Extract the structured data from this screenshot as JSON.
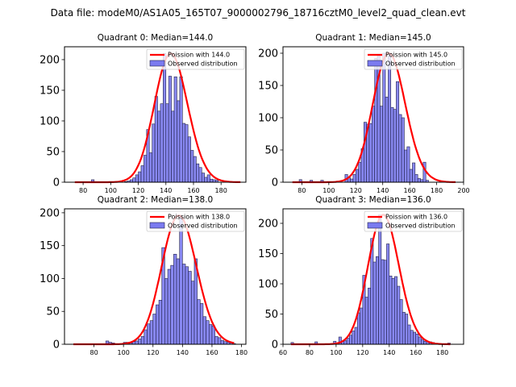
{
  "suptitle": "Data file: modeM0/AS1A05_165T07_9000002796_18716cztM0_level2_quad_clean.evt",
  "colors": {
    "bar_fill": "#7b7bf0",
    "bar_edge": "#22224a",
    "line": "#ff0000"
  },
  "chart_data": [
    {
      "type": "bar",
      "title": "Quadrant 0: Median=144.0",
      "xlim": [
        66.5,
        198
      ],
      "ylim": [
        0,
        221
      ],
      "xticks": [
        80,
        100,
        120,
        140,
        160,
        180
      ],
      "yticks": [
        0,
        50,
        100,
        150,
        200
      ],
      "bin_width": 2,
      "legend": [
        "Poission with 144.0",
        "Observed distribution"
      ],
      "legend_loc": "upper right",
      "poisson_mean": 144.0,
      "poisson_peak": 210,
      "line_range": [
        74,
        194
      ],
      "bins": [
        86,
        110,
        112,
        114,
        116,
        118,
        120,
        122,
        124,
        126,
        128,
        130,
        132,
        134,
        136,
        138,
        140,
        142,
        144,
        146,
        148,
        150,
        152,
        154,
        156,
        158,
        160,
        162,
        164,
        166,
        168,
        170,
        172,
        174,
        176
      ],
      "counts": [
        4,
        1,
        2,
        4,
        7,
        12,
        17,
        27,
        44,
        86,
        48,
        95,
        140,
        116,
        128,
        210,
        128,
        173,
        116,
        172,
        133,
        172,
        96,
        94,
        74,
        52,
        42,
        30,
        24,
        15,
        8,
        12,
        5,
        4,
        3
      ]
    },
    {
      "type": "bar",
      "title": "Quadrant 1: Median=145.0",
      "xlim": [
        66,
        200
      ],
      "ylim": [
        0,
        210
      ],
      "xticks": [
        80,
        100,
        120,
        140,
        160,
        180,
        200
      ],
      "yticks": [
        0,
        50,
        100,
        150,
        200
      ],
      "bin_width": 2,
      "legend": [
        "Poission with 145.0",
        "Observed distribution"
      ],
      "legend_loc": "upper right",
      "poisson_mean": 145.0,
      "poisson_peak": 200,
      "line_range": [
        73,
        194
      ],
      "bins": [
        78,
        86,
        94,
        112,
        114,
        116,
        118,
        120,
        122,
        124,
        126,
        128,
        130,
        132,
        134,
        136,
        138,
        140,
        142,
        144,
        146,
        148,
        150,
        152,
        154,
        156,
        158,
        160,
        162,
        164,
        166,
        168,
        170,
        172
      ],
      "counts": [
        4,
        3,
        3,
        12,
        7,
        5,
        12,
        20,
        31,
        52,
        93,
        90,
        91,
        118,
        192,
        196,
        118,
        200,
        132,
        196,
        116,
        113,
        156,
        105,
        100,
        50,
        55,
        20,
        30,
        12,
        6,
        4,
        31,
        3
      ]
    },
    {
      "type": "bar",
      "title": "Quadrant 2: Median=138.0",
      "xlim": [
        60,
        183
      ],
      "ylim": [
        0,
        206
      ],
      "xticks": [
        80,
        100,
        120,
        140,
        160,
        180
      ],
      "yticks": [
        0,
        50,
        100,
        150,
        200
      ],
      "bin_width": 2,
      "legend": [
        "Poission with 138.0",
        "Observed distribution"
      ],
      "legend_loc": "upper right",
      "poisson_mean": 138.0,
      "poisson_peak": 196,
      "line_range": [
        66,
        175
      ],
      "bins": [
        88,
        90,
        92,
        100,
        102,
        104,
        106,
        108,
        110,
        112,
        114,
        116,
        118,
        120,
        122,
        124,
        126,
        128,
        130,
        132,
        134,
        136,
        138,
        140,
        142,
        144,
        146,
        148,
        150,
        152,
        154,
        156,
        158,
        160,
        162,
        164,
        166,
        168,
        170,
        172,
        174
      ],
      "counts": [
        5,
        3,
        2,
        3,
        3,
        2,
        4,
        5,
        8,
        12,
        22,
        31,
        36,
        46,
        60,
        67,
        147,
        100,
        114,
        120,
        137,
        130,
        196,
        122,
        118,
        111,
        96,
        130,
        68,
        62,
        42,
        36,
        30,
        28,
        12,
        10,
        6,
        4,
        3,
        2,
        1
      ]
    },
    {
      "type": "bar",
      "title": "Quadrant 3: Median=136.0",
      "xlim": [
        60,
        196
      ],
      "ylim": [
        0,
        224
      ],
      "xticks": [
        60,
        80,
        100,
        120,
        140,
        160,
        180
      ],
      "yticks": [
        0,
        50,
        100,
        150,
        200
      ],
      "bin_width": 2,
      "legend": [
        "Poission with 136.0",
        "Observed distribution"
      ],
      "legend_loc": "upper right",
      "poisson_mean": 136.0,
      "poisson_peak": 214,
      "line_range": [
        66,
        186
      ],
      "bins": [
        66,
        84,
        98,
        102,
        104,
        106,
        108,
        110,
        112,
        114,
        116,
        118,
        120,
        122,
        124,
        126,
        128,
        130,
        132,
        134,
        136,
        138,
        140,
        142,
        144,
        146,
        148,
        150,
        152,
        154,
        156,
        158,
        160,
        162,
        164,
        166,
        168,
        170,
        172,
        184
      ],
      "counts": [
        3,
        4,
        5,
        12,
        5,
        6,
        10,
        15,
        22,
        28,
        52,
        60,
        114,
        78,
        93,
        175,
        136,
        145,
        214,
        140,
        139,
        166,
        113,
        109,
        112,
        96,
        74,
        53,
        50,
        32,
        23,
        20,
        17,
        12,
        8,
        5,
        5,
        4,
        3,
        2
      ]
    }
  ]
}
